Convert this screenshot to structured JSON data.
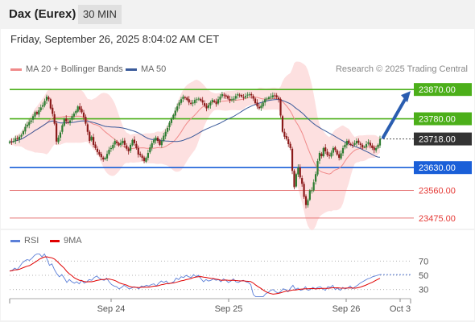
{
  "header": {
    "title": "Dax (Eurex)",
    "timeframe": "30 MIN"
  },
  "timestamp": "Friday, September 26, 2025 8:04:02 AM CET",
  "legend": {
    "ma20_label": "MA 20 + Bollinger Bands",
    "ma50_label": "MA 50",
    "copyright": "Research © 2025 Trading Central",
    "colors": {
      "ma20": "#f08a8a",
      "ma50": "#3a5a9a",
      "band_fill": "#fde0e0"
    }
  },
  "rsi_legend": {
    "rsi_label": "RSI",
    "ma_label": "9MA",
    "colors": {
      "rsi": "#5b7fd8",
      "ma": "#e00000"
    }
  },
  "chart_data": [
    {
      "type": "candlestick",
      "title": "",
      "ylim": [
        23440,
        23910
      ],
      "current_price": {
        "value": 23718,
        "label": "23718.00"
      },
      "levels": [
        {
          "value": 23870,
          "label": "23870.00",
          "kind": "resistance",
          "color": "#4caf1a"
        },
        {
          "value": 23780,
          "label": "23780.00",
          "kind": "resistance",
          "color": "#4caf1a"
        },
        {
          "value": 23630,
          "label": "23630.00",
          "kind": "pivot",
          "color": "#1a5fd8"
        },
        {
          "value": 23560,
          "label": "23560.00",
          "kind": "support",
          "color": "#e57373"
        },
        {
          "value": 23475,
          "label": "23475.00",
          "kind": "support",
          "color": "#e57373"
        }
      ],
      "forecast_arrow": {
        "from": 23718,
        "to": 23870,
        "direction": "up"
      },
      "x_tick_labels": [
        "Sep 24",
        "Sep 25",
        "Sep 26",
        "Oct 3"
      ],
      "candles_close": [
        23710,
        23708,
        23712,
        23720,
        23718,
        23725,
        23730,
        23742,
        23755,
        23762,
        23770,
        23775,
        23788,
        23800,
        23795,
        23806,
        23815,
        23822,
        23835,
        23848,
        23840,
        23812,
        23795,
        23765,
        23710,
        23722,
        23738,
        23760,
        23780,
        23772,
        23768,
        23775,
        23788,
        23796,
        23804,
        23818,
        23808,
        23800,
        23785,
        23765,
        23740,
        23712,
        23725,
        23700,
        23690,
        23678,
        23670,
        23662,
        23655,
        23660,
        23672,
        23685,
        23690,
        23700,
        23712,
        23705,
        23698,
        23706,
        23712,
        23700,
        23688,
        23680,
        23700,
        23715,
        23705,
        23690,
        23670,
        23668,
        23660,
        23650,
        23660,
        23675,
        23692,
        23705,
        23715,
        23722,
        23712,
        23700,
        23712,
        23728,
        23740,
        23752,
        23768,
        23780,
        23792,
        23805,
        23818,
        23830,
        23840,
        23848,
        23845,
        23838,
        23830,
        23826,
        23830,
        23838,
        23840,
        23842,
        23836,
        23830,
        23820,
        23812,
        23822,
        23830,
        23838,
        23832,
        23825,
        23840,
        23848,
        23856,
        23852,
        23848,
        23842,
        23836,
        23840,
        23842,
        23850,
        23855,
        23852,
        23848,
        23845,
        23850,
        23854,
        23855,
        23852,
        23842,
        23828,
        23818,
        23812,
        23820,
        23830,
        23840,
        23842,
        23846,
        23848,
        23852,
        23850,
        23846,
        23840,
        23790,
        23740,
        23725,
        23718,
        23702,
        23690,
        23620,
        23570,
        23610,
        23630,
        23600,
        23580,
        23540,
        23515,
        23530,
        23560,
        23560,
        23585,
        23610,
        23650,
        23675,
        23665,
        23690,
        23680,
        23668,
        23666,
        23676,
        23690,
        23684,
        23670,
        23660,
        23674,
        23690,
        23700,
        23712,
        23705,
        23700,
        23698,
        23705,
        23712,
        23706,
        23700,
        23692,
        23694,
        23702,
        23708,
        23698,
        23690,
        23684,
        23690,
        23700,
        23718
      ]
    },
    {
      "type": "line",
      "title": "",
      "ylim": [
        15,
        85
      ],
      "y_ticks": [
        70,
        50,
        30
      ],
      "rsi_start": 56,
      "rsi_deltas": [
        1,
        3,
        -2,
        4,
        5,
        3,
        2,
        -1,
        3,
        4,
        6,
        2,
        -4,
        5,
        -7,
        -9,
        2,
        -8,
        -6,
        -4,
        3,
        -5,
        -6,
        4,
        -3,
        -2,
        2,
        -3,
        5,
        -4,
        2,
        3,
        -1,
        4,
        2,
        -3,
        -2,
        -1,
        3,
        -5,
        -4,
        -2,
        -1,
        -3,
        2,
        3,
        -2,
        -3,
        1,
        2,
        -1,
        -2,
        4,
        -1,
        2,
        -1,
        2,
        1,
        -3,
        4,
        3,
        -2,
        2,
        -4,
        1,
        2,
        5,
        -2,
        4,
        -1,
        3,
        -2,
        -1,
        4,
        -3,
        2,
        -5,
        -4,
        3,
        -2,
        1,
        2,
        -2,
        1,
        -3,
        4,
        -2,
        -3,
        2,
        3,
        -4,
        -1,
        2,
        1,
        -2,
        -1,
        -3,
        -14,
        -3,
        -7,
        -4,
        -2,
        4,
        2,
        3,
        1,
        -3,
        -2,
        2,
        4,
        -1,
        -3,
        5,
        4,
        -6,
        2,
        -3,
        1,
        4,
        -5,
        1,
        3,
        -2,
        2,
        1,
        -3,
        -2,
        5,
        -1,
        3,
        -6,
        2,
        -3,
        4,
        -2,
        1,
        3,
        -4,
        3,
        2,
        3,
        2,
        2,
        2,
        1,
        2,
        1,
        1,
        1
      ],
      "ma_period": 9
    }
  ]
}
